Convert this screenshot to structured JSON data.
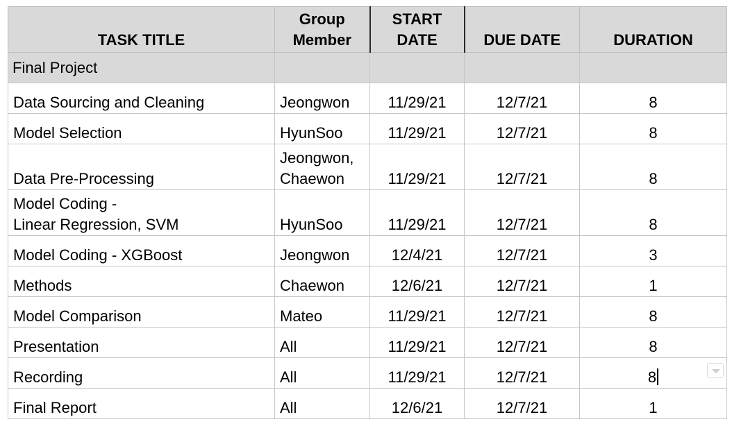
{
  "header": {
    "task_title": "TASK TITLE",
    "group_member_line1": "Group",
    "group_member_line2": "Member",
    "start_date_line1": "START",
    "start_date_line2": "DATE",
    "due_date": "DUE DATE",
    "duration": "DURATION"
  },
  "section": {
    "title": "Final Project"
  },
  "rows": [
    {
      "task": [
        "Data Sourcing and Cleaning"
      ],
      "member": [
        "Jeongwon"
      ],
      "start": "11/29/21",
      "due": "12/7/21",
      "duration": "8"
    },
    {
      "task": [
        "Model Selection"
      ],
      "member": [
        "HyunSoo"
      ],
      "start": "11/29/21",
      "due": "12/7/21",
      "duration": "8"
    },
    {
      "task": [
        "Data Pre-Processing"
      ],
      "member": [
        "Jeongwon,",
        "Chaewon"
      ],
      "start": "11/29/21",
      "due": "12/7/21",
      "duration": "8"
    },
    {
      "task": [
        "Model Coding -",
        "Linear Regression, SVM"
      ],
      "member": [
        "HyunSoo"
      ],
      "start": "11/29/21",
      "due": "12/7/21",
      "duration": "8"
    },
    {
      "task": [
        "Model Coding - XGBoost"
      ],
      "member": [
        "Jeongwon"
      ],
      "start": "12/4/21",
      "due": "12/7/21",
      "duration": "3"
    },
    {
      "task": [
        "Methods"
      ],
      "member": [
        "Chaewon"
      ],
      "start": "12/6/21",
      "due": "12/7/21",
      "duration": "1"
    },
    {
      "task": [
        "Model Comparison"
      ],
      "member": [
        "Mateo"
      ],
      "start": "11/29/21",
      "due": "12/7/21",
      "duration": "8"
    },
    {
      "task": [
        "Presentation"
      ],
      "member": [
        "All"
      ],
      "start": "11/29/21",
      "due": "12/7/21",
      "duration": "8"
    },
    {
      "task": [
        "Recording"
      ],
      "member": [
        "All"
      ],
      "start": "11/29/21",
      "due": "12/7/21",
      "duration": "8",
      "editing": true
    },
    {
      "task": [
        "Final Report"
      ],
      "member": [
        "All"
      ],
      "start": "12/6/21",
      "due": "12/7/21",
      "duration": "1"
    }
  ],
  "icons": {
    "active_cell_dropdown": "chevron-down-icon"
  },
  "colors": {
    "header_fill": "#d9d9d9",
    "grid_line": "#c6c6c6"
  }
}
